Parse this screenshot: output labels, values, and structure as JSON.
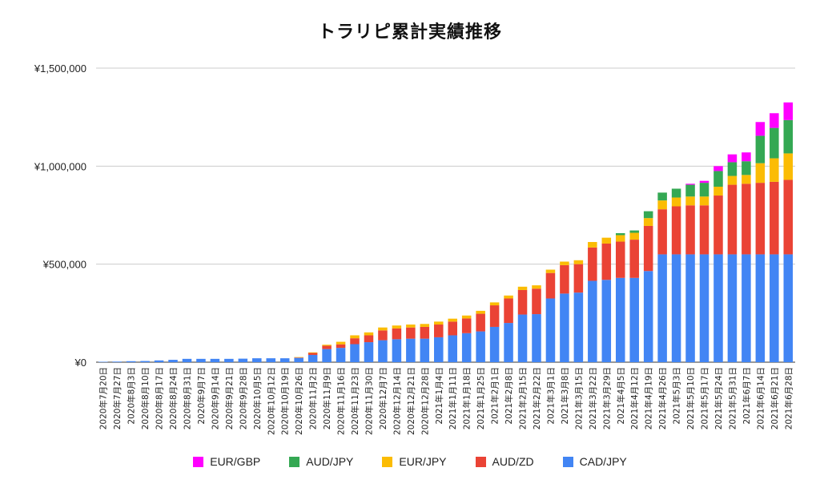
{
  "chart_data": {
    "type": "bar",
    "stacked": true,
    "title": "トラリピ累計実績推移",
    "xlabel": "",
    "ylabel": "",
    "ylim": [
      0,
      1500000
    ],
    "yticks": [
      0,
      500000,
      1000000,
      1500000
    ],
    "ytick_labels": [
      "¥0",
      "¥500,000",
      "¥1,000,000",
      "¥1,500,000"
    ],
    "grid": true,
    "legend_position": "bottom",
    "categories": [
      "2020年7月20日",
      "2020年7月27日",
      "2020年8月3日",
      "2020年8月10日",
      "2020年8月17日",
      "2020年8月24日",
      "2020年8月31日",
      "2020年9月7日",
      "2020年9月14日",
      "2020年9月21日",
      "2020年9月28日",
      "2020年10月5日",
      "2020年10月12日",
      "2020年10月19日",
      "2020年10月26日",
      "2020年11月2日",
      "2020年11月9日",
      "2020年11月16日",
      "2020年11月23日",
      "2020年11月30日",
      "2020年12月7日",
      "2020年12月14日",
      "2020年12月21日",
      "2020年12月28日",
      "2021年1月4日",
      "2021年1月11日",
      "2021年1月18日",
      "2021年1月25日",
      "2021年2月1日",
      "2021年2月8日",
      "2021年2月15日",
      "2021年2月22日",
      "2021年3月1日",
      "2021年3月8日",
      "2021年3月15日",
      "2021年3月22日",
      "2021年3月29日",
      "2021年4月5日",
      "2021年4月12日",
      "2021年4月19日",
      "2021年4月26日",
      "2021年5月3日",
      "2021年5月10日",
      "2021年5月17日",
      "2021年5月24日",
      "2021年5月31日",
      "2021年6月7日",
      "2021年6月14日",
      "2021年6月21日",
      "2021年6月28日"
    ],
    "series": [
      {
        "name": "CAD/JPY",
        "color": "#4285f4",
        "values": [
          2000,
          3000,
          5000,
          6000,
          9000,
          12000,
          17000,
          17000,
          17000,
          17000,
          18000,
          20000,
          20000,
          20000,
          22000,
          37000,
          67000,
          73000,
          92000,
          102000,
          112000,
          117000,
          120000,
          120000,
          127000,
          137000,
          148000,
          157000,
          180000,
          200000,
          243000,
          245000,
          325000,
          350000,
          355000,
          415000,
          420000,
          430000,
          430000,
          465000,
          550000,
          550000,
          550000,
          550000,
          550000,
          550000,
          550000,
          550000,
          550000,
          550000
        ]
      },
      {
        "name": "AUD/ZD",
        "color": "#ea4335",
        "values": [
          0,
          0,
          0,
          0,
          0,
          0,
          0,
          0,
          0,
          0,
          0,
          0,
          0,
          0,
          2000,
          10000,
          17000,
          18000,
          30000,
          35000,
          50000,
          55000,
          57000,
          60000,
          65000,
          70000,
          75000,
          90000,
          110000,
          125000,
          125000,
          130000,
          130000,
          145000,
          145000,
          170000,
          185000,
          185000,
          195000,
          230000,
          230000,
          245000,
          250000,
          250000,
          300000,
          355000,
          360000,
          365000,
          370000,
          380000
        ]
      },
      {
        "name": "EUR/JPY",
        "color": "#fbbc04",
        "values": [
          0,
          0,
          0,
          0,
          0,
          0,
          0,
          0,
          0,
          0,
          0,
          0,
          0,
          0,
          2000,
          3000,
          5000,
          13000,
          15000,
          15000,
          15000,
          15000,
          15000,
          15000,
          15000,
          15000,
          15000,
          15000,
          15000,
          15000,
          17000,
          17000,
          17000,
          18000,
          20000,
          28000,
          30000,
          33000,
          35000,
          40000,
          45000,
          45000,
          45000,
          45000,
          45000,
          45000,
          45000,
          100000,
          120000,
          135000
        ]
      },
      {
        "name": "AUD/JPY",
        "color": "#34a853",
        "values": [
          0,
          0,
          0,
          0,
          0,
          0,
          0,
          0,
          0,
          0,
          0,
          0,
          0,
          0,
          0,
          0,
          0,
          0,
          0,
          0,
          0,
          0,
          0,
          0,
          0,
          0,
          0,
          0,
          0,
          0,
          0,
          0,
          0,
          0,
          0,
          0,
          0,
          10000,
          12000,
          35000,
          40000,
          45000,
          60000,
          70000,
          80000,
          70000,
          70000,
          140000,
          155000,
          170000
        ]
      },
      {
        "name": "EUR/GBP",
        "color": "#ff00ff",
        "values": [
          0,
          0,
          0,
          0,
          0,
          0,
          0,
          0,
          0,
          0,
          0,
          0,
          0,
          0,
          0,
          0,
          0,
          0,
          0,
          0,
          0,
          0,
          0,
          0,
          0,
          0,
          0,
          0,
          0,
          0,
          0,
          0,
          0,
          0,
          0,
          0,
          0,
          0,
          0,
          0,
          0,
          0,
          5000,
          10000,
          25000,
          40000,
          45000,
          70000,
          75000,
          90000
        ]
      }
    ],
    "legend_order": [
      "EUR/GBP",
      "AUD/JPY",
      "EUR/JPY",
      "AUD/ZD",
      "CAD/JPY"
    ]
  }
}
